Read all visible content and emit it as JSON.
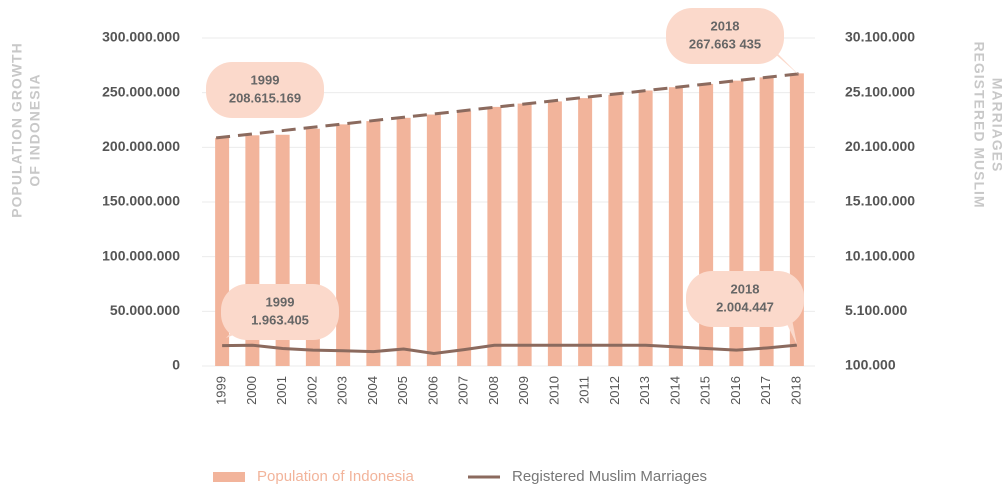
{
  "chart_data": {
    "type": "bar-line",
    "y_label": [
      "POPULATION GROWTH",
      "OF INDONESIA"
    ],
    "y2_label": [
      "REGISTERED MUSLIM",
      "MARRIAGES"
    ],
    "categories": [
      "1999",
      "2000",
      "2001",
      "2002",
      "2003",
      "2004",
      "2005",
      "2006",
      "2007",
      "2008",
      "2009",
      "2010",
      "2011",
      "2012",
      "2013",
      "2014",
      "2015",
      "2016",
      "2017",
      "2018"
    ],
    "series": [
      {
        "name": "Population of Indonesia",
        "type": "bar",
        "color": "#f2b49b",
        "trend_color": "#8b6a5e",
        "values": [
          208615169,
          211000000,
          211500000,
          217000000,
          221000000,
          224000000,
          227000000,
          230000000,
          233000000,
          237000000,
          240000000,
          242000000,
          245000000,
          248000000,
          252000000,
          255000000,
          258000000,
          261000000,
          264000000,
          267663435
        ]
      },
      {
        "name": "Registered Muslim Marriages",
        "type": "line",
        "axis": "y2",
        "color": "#8b6a5e",
        "values": [
          1963405,
          2000000,
          1700000,
          1550000,
          1500000,
          1420000,
          1650000,
          1250000,
          1600000,
          2000000,
          2000000,
          2000000,
          2000000,
          2000000,
          2000000,
          1850000,
          1700000,
          1550000,
          1750000,
          2004447
        ]
      }
    ],
    "ylim": [
      0,
      300000000
    ],
    "yticks": [
      0,
      {
        "value": 50000000,
        "label": "50.000.000"
      },
      {
        "value": 100000000,
        "label": "100.000.000"
      },
      {
        "value": 150000000,
        "label": "150.000.000"
      },
      {
        "value": 200000000,
        "label": "200.000.000"
      },
      {
        "value": 250000000,
        "label": "250.000.000"
      },
      {
        "value": 300000000,
        "label": "300.000.000"
      }
    ],
    "y2lim": [
      100000,
      30100000
    ],
    "y2ticks": [
      {
        "value": 100000,
        "label": "100.000"
      },
      {
        "value": 5100000,
        "label": "5.100.000"
      },
      {
        "value": 10100000,
        "label": "10.100.000"
      },
      {
        "value": 15100000,
        "label": "15.100.000"
      },
      {
        "value": 20100000,
        "label": "20.100.000"
      },
      {
        "value": 25100000,
        "label": "25.100.000"
      },
      {
        "value": 30100000,
        "label": "30.100.000"
      }
    ],
    "grid": true,
    "annotations": [
      {
        "text": [
          "1999",
          "208.615.169"
        ]
      },
      {
        "text": [
          "2018",
          "267.663 435"
        ]
      },
      {
        "text": [
          "1999",
          "1.963.405"
        ]
      },
      {
        "text": [
          "2018",
          "2.004.447"
        ]
      }
    ]
  }
}
